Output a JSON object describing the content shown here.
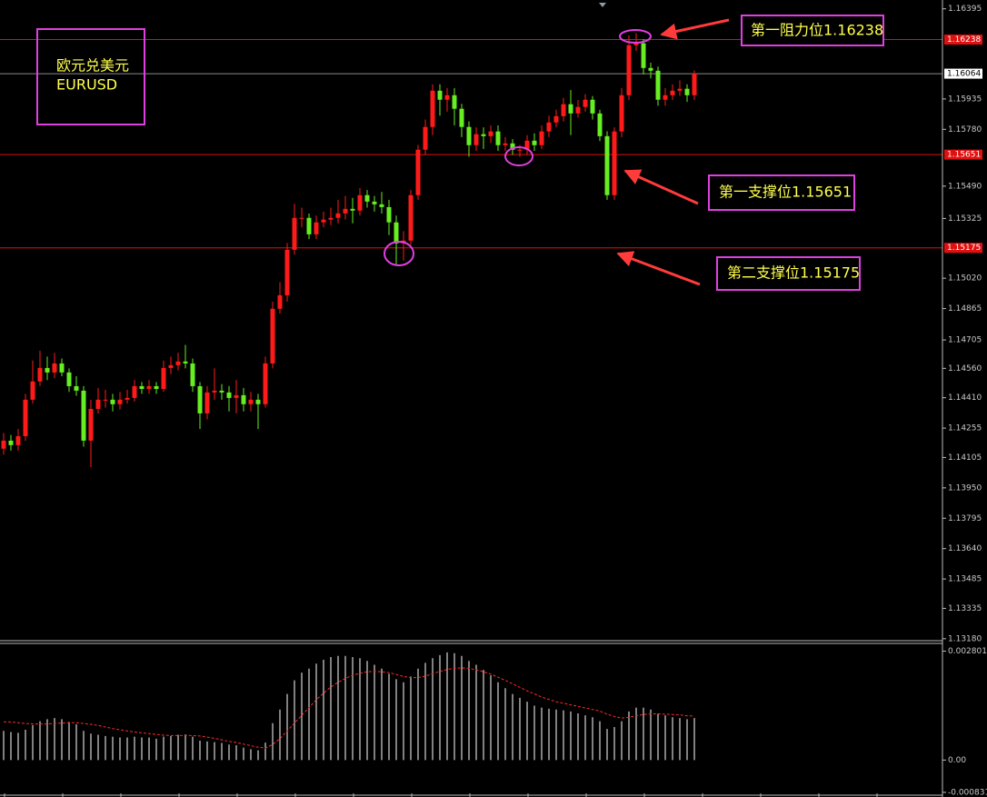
{
  "chart_data": [
    {
      "type": "candlestick",
      "title_lines": [
        "欧元兑美元",
        "EURUSD"
      ],
      "annotations": [
        "第一阻力位1.16238",
        "第一支撑位1.15651",
        "第二支撑位1.15175"
      ],
      "up_color": "#ff1a1a",
      "down_color": "#66ee22",
      "ylim": [
        1.1317,
        1.1644
      ],
      "yticks": [
        1.16395,
        1.15935,
        {
          "value": 1.1578,
          "label": "1.15780"
        },
        {
          "value": 1.1549,
          "label": "1.15490"
        },
        1.15325,
        {
          "value": 1.1502,
          "label": "1.15020"
        },
        1.14865,
        1.14705,
        {
          "value": 1.1456,
          "label": "1.14560"
        },
        {
          "value": 1.1441,
          "label": "1.14410"
        },
        1.14255,
        1.14105,
        {
          "value": 1.1395,
          "label": "1.13950"
        },
        1.13795,
        {
          "value": 1.1364,
          "label": "1.13640"
        },
        1.13485,
        1.13335,
        {
          "value": 1.1318,
          "label": "1.13180"
        }
      ],
      "levels": [
        {
          "value": 1.16238,
          "color": "#e01010"
        },
        {
          "value": 1.15651,
          "color": "#e01010"
        },
        {
          "value": 1.15175,
          "color": "#e01010"
        }
      ],
      "current_price": {
        "value": 1.16064,
        "color": "#8a8a8a"
      },
      "open": [
        1.1415,
        1.14191,
        1.14168,
        1.14214,
        1.144,
        1.14493,
        1.14562,
        1.14539,
        1.14585,
        1.14539,
        1.14469,
        1.14446,
        1.14191,
        1.14353,
        1.144,
        1.144,
        1.14377,
        1.144,
        1.14409,
        1.14469,
        1.14455,
        1.14469,
        1.14455,
        1.14562,
        1.14576,
        1.14595,
        1.14585,
        1.14469,
        1.1433,
        1.14437,
        1.14446,
        1.14437,
        1.14409,
        1.14423,
        1.14377,
        1.144,
        1.14377,
        1.14585,
        1.14864,
        1.14933,
        1.15165,
        1.15328,
        1.15328,
        1.15244,
        1.15305,
        1.15319,
        1.15328,
        1.15351,
        1.15374,
        1.15365,
        1.15444,
        1.15411,
        1.15397,
        1.15383,
        1.15305,
        1.15198,
        1.15212,
        1.15444,
        1.15676,
        1.15792,
        1.15977,
        1.15931,
        1.15954,
        1.15885,
        1.15792,
        1.15699,
        1.15755,
        1.15745,
        1.15769,
        1.15699,
        1.15708,
        1.15676,
        1.15676,
        1.15722,
        1.15699,
        1.15769,
        1.15815,
        1.15847,
        1.15908,
        1.15861,
        1.15894,
        1.15931,
        1.15861,
        1.15745,
        1.15444,
        1.15769,
        1.15954,
        1.16209,
        1.16219,
        1.16093,
        1.16079,
        1.15931,
        1.15954,
        1.15977,
        1.15987,
        1.15954
      ],
      "high": [
        1.1423,
        1.1422,
        1.1425,
        1.1443,
        1.146,
        1.1465,
        1.1462,
        1.1464,
        1.1461,
        1.1456,
        1.1452,
        1.1447,
        1.144,
        1.1446,
        1.1445,
        1.1443,
        1.1444,
        1.1445,
        1.145,
        1.1449,
        1.145,
        1.1449,
        1.146,
        1.1462,
        1.1464,
        1.1468,
        1.1461,
        1.1449,
        1.1447,
        1.1456,
        1.1448,
        1.1447,
        1.145,
        1.1446,
        1.1444,
        1.1443,
        1.1462,
        1.149,
        1.15,
        1.152,
        1.154,
        1.1538,
        1.1535,
        1.1534,
        1.1536,
        1.1538,
        1.1542,
        1.1544,
        1.1543,
        1.1548,
        1.1547,
        1.1544,
        1.1546,
        1.1542,
        1.1534,
        1.1526,
        1.1547,
        1.157,
        1.1583,
        1.1601,
        1.1601,
        1.1599,
        1.1599,
        1.1591,
        1.1582,
        1.1579,
        1.1579,
        1.158,
        1.158,
        1.1574,
        1.1573,
        1.157,
        1.1575,
        1.1576,
        1.158,
        1.1585,
        1.1588,
        1.1594,
        1.1598,
        1.1593,
        1.1596,
        1.1595,
        1.1588,
        1.1577,
        1.1579,
        1.1599,
        1.1626,
        1.1627,
        1.1624,
        1.1612,
        1.161,
        1.1599,
        1.1601,
        1.1603,
        1.1601,
        1.1608
      ],
      "low": [
        1.1412,
        1.1414,
        1.1414,
        1.1419,
        1.1438,
        1.1447,
        1.145,
        1.1451,
        1.1452,
        1.1444,
        1.1442,
        1.1416,
        1.14056,
        1.1433,
        1.1436,
        1.1434,
        1.1435,
        1.1438,
        1.1439,
        1.1443,
        1.1443,
        1.1443,
        1.1444,
        1.1453,
        1.1455,
        1.1456,
        1.1444,
        1.1425,
        1.143,
        1.144,
        1.144,
        1.1434,
        1.1433,
        1.1434,
        1.1434,
        1.1425,
        1.1436,
        1.1456,
        1.1484,
        1.149,
        1.1514,
        1.1528,
        1.1522,
        1.1522,
        1.1528,
        1.1529,
        1.153,
        1.1532,
        1.153,
        1.1534,
        1.1538,
        1.1536,
        1.1535,
        1.1524,
        1.15087,
        1.1511,
        1.1519,
        1.1542,
        1.1565,
        1.1575,
        1.1585,
        1.1587,
        1.158,
        1.1574,
        1.1564,
        1.1567,
        1.1568,
        1.1571,
        1.1567,
        1.1567,
        1.1565,
        1.1564,
        1.1565,
        1.1567,
        1.1568,
        1.1574,
        1.1579,
        1.1582,
        1.1575,
        1.1584,
        1.1587,
        1.1583,
        1.1572,
        1.1542,
        1.1542,
        1.1574,
        1.1593,
        1.1618,
        1.1606,
        1.1604,
        1.159,
        1.159,
        1.1593,
        1.1595,
        1.1592,
        1.1593
      ],
      "close": [
        1.14191,
        1.14168,
        1.14214,
        1.144,
        1.14493,
        1.14562,
        1.14539,
        1.14585,
        1.14539,
        1.14469,
        1.14446,
        1.14191,
        1.14353,
        1.144,
        1.144,
        1.14377,
        1.144,
        1.14409,
        1.14469,
        1.14455,
        1.14469,
        1.14455,
        1.14562,
        1.14576,
        1.14595,
        1.14585,
        1.14469,
        1.1433,
        1.14437,
        1.14446,
        1.14437,
        1.14409,
        1.14423,
        1.14377,
        1.144,
        1.14377,
        1.14585,
        1.14864,
        1.14933,
        1.15165,
        1.15328,
        1.15328,
        1.15244,
        1.15305,
        1.15319,
        1.15328,
        1.15351,
        1.15374,
        1.15365,
        1.15444,
        1.15411,
        1.15397,
        1.15383,
        1.15305,
        1.15198,
        1.15212,
        1.15444,
        1.15676,
        1.15792,
        1.15977,
        1.15931,
        1.15954,
        1.15885,
        1.15792,
        1.15699,
        1.15755,
        1.15745,
        1.15769,
        1.15699,
        1.15708,
        1.15676,
        1.15676,
        1.15722,
        1.15699,
        1.15769,
        1.15815,
        1.15847,
        1.15908,
        1.15861,
        1.15894,
        1.15931,
        1.15861,
        1.15745,
        1.15444,
        1.15769,
        1.15954,
        1.16209,
        1.16219,
        1.16093,
        1.16079,
        1.15931,
        1.15954,
        1.15977,
        1.15987,
        1.15954,
        1.16064
      ]
    },
    {
      "type": "macd",
      "histogram_color": "#ffffff",
      "signal_color": "#ff2a2a",
      "ylim": [
        -0.00095,
        0.003
      ],
      "yticks": [
        0.002801,
        {
          "value": 0,
          "label": "0.00"
        },
        -0.000831
      ],
      "histogram": [
        0.00075,
        0.00072,
        0.0007,
        0.00078,
        0.0009,
        0.001,
        0.00105,
        0.00108,
        0.00105,
        0.00098,
        0.00092,
        0.00075,
        0.00068,
        0.00065,
        0.00062,
        0.0006,
        0.00058,
        0.00058,
        0.0006,
        0.00058,
        0.00058,
        0.00055,
        0.0006,
        0.00062,
        0.00065,
        0.00066,
        0.0006,
        0.0005,
        0.00048,
        0.00046,
        0.00044,
        0.0004,
        0.00038,
        0.00032,
        0.00028,
        0.00025,
        0.00045,
        0.00095,
        0.0013,
        0.0017,
        0.00205,
        0.00225,
        0.00235,
        0.00248,
        0.00258,
        0.00265,
        0.00268,
        0.00268,
        0.00265,
        0.00262,
        0.00255,
        0.00245,
        0.00235,
        0.00222,
        0.00208,
        0.002,
        0.00215,
        0.00235,
        0.0025,
        0.00262,
        0.0027,
        0.00277,
        0.00275,
        0.00268,
        0.00255,
        0.00245,
        0.00232,
        0.00218,
        0.002,
        0.00185,
        0.0017,
        0.0016,
        0.0015,
        0.0014,
        0.00135,
        0.00132,
        0.0013,
        0.00128,
        0.00125,
        0.0012,
        0.00115,
        0.0011,
        0.001,
        0.0008,
        0.00085,
        0.001,
        0.00125,
        0.00135,
        0.00135,
        0.0013,
        0.0012,
        0.00115,
        0.0011,
        0.00108,
        0.00105,
        0.00108
      ],
      "signal": [
        0.00098,
        0.00098,
        0.00096,
        0.00094,
        0.00093,
        0.00093,
        0.00093,
        0.00094,
        0.00095,
        0.00096,
        0.00096,
        0.00094,
        0.00092,
        0.00089,
        0.00085,
        0.00081,
        0.00078,
        0.00075,
        0.00072,
        0.0007,
        0.00068,
        0.00066,
        0.00064,
        0.00063,
        0.00063,
        0.00063,
        0.00063,
        0.00062,
        0.00059,
        0.00056,
        0.00052,
        0.00048,
        0.00045,
        0.00041,
        0.00037,
        0.00033,
        0.00031,
        0.0004,
        0.00055,
        0.00075,
        0.00095,
        0.00115,
        0.00135,
        0.00155,
        0.00172,
        0.00188,
        0.002,
        0.0021,
        0.00218,
        0.00223,
        0.00227,
        0.00228,
        0.00227,
        0.00225,
        0.0022,
        0.00215,
        0.00212,
        0.00212,
        0.00216,
        0.00222,
        0.00228,
        0.00233,
        0.00236,
        0.00237,
        0.00236,
        0.00232,
        0.00227,
        0.00221,
        0.00213,
        0.00205,
        0.00196,
        0.00187,
        0.00178,
        0.0017,
        0.00162,
        0.00156,
        0.0015,
        0.00146,
        0.00142,
        0.00138,
        0.00134,
        0.0013,
        0.00126,
        0.00118,
        0.00112,
        0.00108,
        0.0011,
        0.00114,
        0.00117,
        0.00119,
        0.00119,
        0.00118,
        0.00117,
        0.00116,
        0.00114,
        0.00113
      ]
    }
  ]
}
